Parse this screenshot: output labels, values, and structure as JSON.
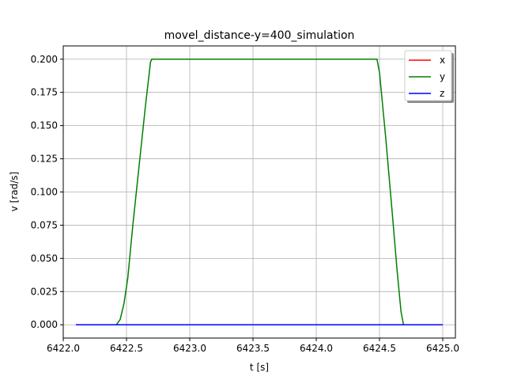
{
  "chart_data": {
    "type": "line",
    "title": "movel_distance-y=400_simulation",
    "xlabel": "t [s]",
    "ylabel": "v [rad/s]",
    "xlim": [
      6422.0,
      6425.1
    ],
    "ylim": [
      -0.01,
      0.21
    ],
    "xticks": [
      6422.0,
      6422.5,
      6423.0,
      6423.5,
      6424.0,
      6424.5,
      6425.0
    ],
    "xtick_labels": [
      "6422.0",
      "6422.5",
      "6423.0",
      "6423.5",
      "6424.0",
      "6424.5",
      "6425.0"
    ],
    "yticks": [
      0.0,
      0.025,
      0.05,
      0.075,
      0.1,
      0.125,
      0.15,
      0.175,
      0.2
    ],
    "ytick_labels": [
      "0.000",
      "0.025",
      "0.050",
      "0.075",
      "0.100",
      "0.125",
      "0.150",
      "0.175",
      "0.200"
    ],
    "grid": true,
    "legend_position": "top-right",
    "series": [
      {
        "name": "x",
        "color": "#ff0000",
        "x": [
          6422.1,
          6425.0
        ],
        "y": [
          0.0,
          0.0
        ]
      },
      {
        "name": "y",
        "color": "#008000",
        "x": [
          6422.1,
          6422.42,
          6422.45,
          6422.48,
          6422.51,
          6422.55,
          6422.6,
          6422.65,
          6422.69,
          6422.7,
          6424.48,
          6424.5,
          6424.55,
          6424.6,
          6424.64,
          6424.67,
          6424.69,
          6425.0
        ],
        "y": [
          0.0,
          0.0,
          0.004,
          0.016,
          0.035,
          0.075,
          0.12,
          0.165,
          0.198,
          0.2,
          0.2,
          0.19,
          0.14,
          0.085,
          0.04,
          0.01,
          0.0,
          0.0
        ]
      },
      {
        "name": "z",
        "color": "#0000ff",
        "x": [
          6422.1,
          6425.0
        ],
        "y": [
          0.0,
          0.0
        ]
      }
    ]
  }
}
